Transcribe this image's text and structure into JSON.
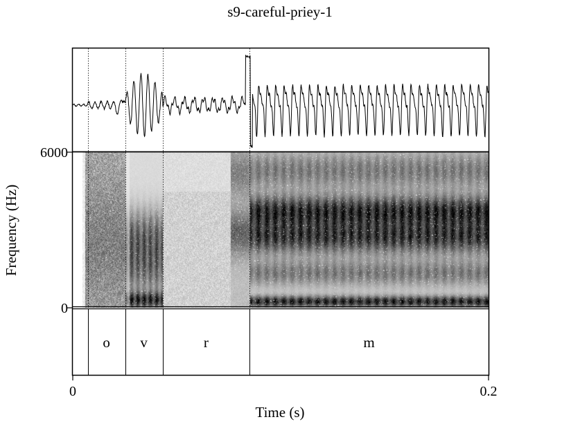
{
  "title": "s9-careful-priey-1",
  "chart_data": {
    "type": "spectrogram",
    "title": "s9-careful-priey-1",
    "xlabel": "Time (s)",
    "ylabel": "Frequency (Hz)",
    "xlim": [
      0,
      0.2
    ],
    "ylim": [
      0,
      6000
    ],
    "x_ticks": [
      "0",
      "0.2"
    ],
    "y_ticks": [
      "6000",
      "0"
    ],
    "boundaries_s": [
      0.0072,
      0.0252,
      0.0432,
      0.0851
    ],
    "segments": [
      {
        "label": "o",
        "start": 0.0072,
        "end": 0.0252
      },
      {
        "label": "v",
        "start": 0.0252,
        "end": 0.0432
      },
      {
        "label": "r",
        "start": 0.0432,
        "end": 0.0851
      },
      {
        "label": "m",
        "start": 0.0851,
        "end": 0.2
      }
    ]
  },
  "colors": {
    "ink": "#000000",
    "background": "#ffffff"
  }
}
